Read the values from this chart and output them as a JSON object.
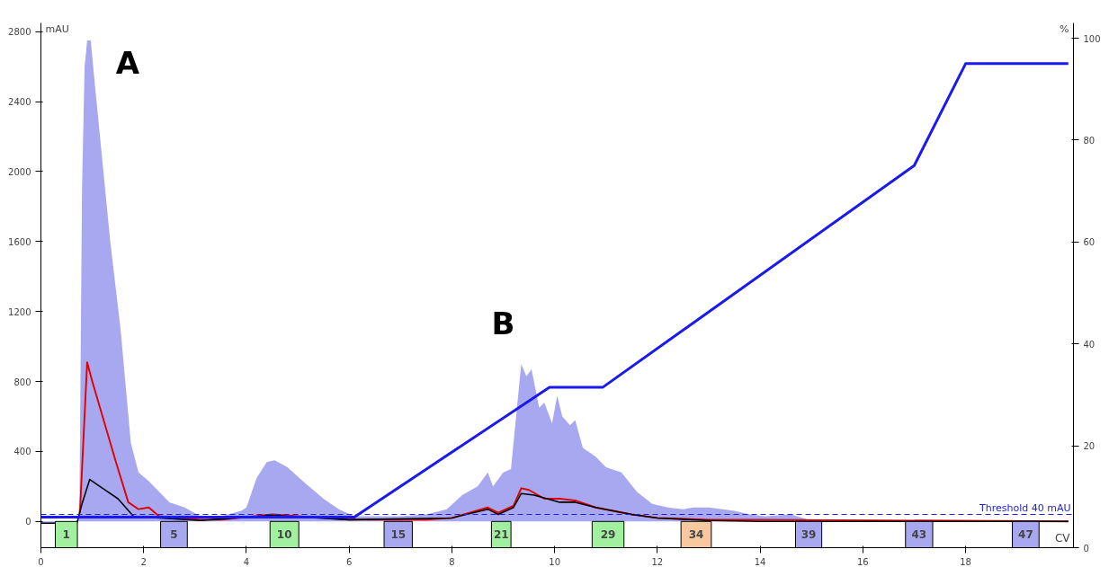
{
  "chart_data": {
    "type": "line",
    "xlabel": "CV",
    "ylabel": "mAU",
    "y2label": "%",
    "xlim": [
      0,
      20.1
    ],
    "xticks": [
      0,
      2,
      4,
      6,
      8,
      10,
      12,
      14,
      16,
      18
    ],
    "ylim": [
      -150,
      2850
    ],
    "yticks": [
      0,
      400,
      800,
      1200,
      1600,
      2000,
      2400,
      2800
    ],
    "y2lim": [
      0,
      103
    ],
    "y2ticks": [
      0,
      20,
      40,
      60,
      80,
      100
    ],
    "grid": false,
    "series": [
      {
        "type": "area",
        "color": "#a8a8f0",
        "x": [
          0,
          0.7,
          0.75,
          0.8,
          0.85,
          0.9,
          0.97,
          1.05,
          1.2,
          1.35,
          1.55,
          1.75,
          1.9,
          2.1,
          2.3,
          2.5,
          2.8,
          3.1,
          3.5,
          3.9,
          4.0,
          4.2,
          4.4,
          4.55,
          4.8,
          5.1,
          5.5,
          5.8,
          6.1,
          7.0,
          7.5,
          7.9,
          8.2,
          8.5,
          8.7,
          8.8,
          9.0,
          9.15,
          9.3,
          9.35,
          9.45,
          9.55,
          9.7,
          9.8,
          9.95,
          10.05,
          10.15,
          10.3,
          10.4,
          10.55,
          10.8,
          11.0,
          11.3,
          11.6,
          11.9,
          12.2,
          12.5,
          12.7,
          13.0,
          13.5,
          13.8,
          14.1,
          14.6,
          15.0,
          16.0,
          20.0
        ],
        "values": [
          -10,
          -10,
          100,
          1900,
          2600,
          2750,
          2750,
          2500,
          2050,
          1600,
          1100,
          450,
          280,
          230,
          170,
          110,
          80,
          30,
          30,
          60,
          80,
          250,
          340,
          350,
          310,
          230,
          130,
          70,
          30,
          30,
          40,
          70,
          150,
          200,
          280,
          200,
          280,
          300,
          750,
          900,
          830,
          870,
          650,
          680,
          560,
          720,
          600,
          550,
          580,
          420,
          370,
          310,
          280,
          170,
          100,
          80,
          70,
          80,
          80,
          60,
          40,
          30,
          40,
          5,
          0,
          0
        ]
      },
      {
        "color": "#e00000",
        "x": [
          0.76,
          0.8,
          0.9,
          1.0,
          1.2,
          1.45,
          1.7,
          1.9,
          2.1,
          2.3,
          3.1,
          3.5,
          4.5,
          5.5,
          6.0,
          7.5,
          8.0,
          8.7,
          8.9,
          9.2,
          9.35,
          9.5,
          9.8,
          10.1,
          10.4,
          10.8,
          11.5,
          12.0,
          13.0,
          14.0,
          20.0
        ],
        "values": [
          50,
          300,
          910,
          800,
          600,
          350,
          110,
          70,
          80,
          30,
          10,
          10,
          40,
          20,
          10,
          10,
          20,
          80,
          50,
          90,
          190,
          180,
          130,
          130,
          120,
          80,
          40,
          20,
          10,
          10,
          0
        ]
      },
      {
        "color": "#000000",
        "x": [
          0,
          0.7,
          0.8,
          0.95,
          1.2,
          1.5,
          1.8,
          2.3,
          3.1,
          4.5,
          6.0,
          8.0,
          8.7,
          8.9,
          9.2,
          9.35,
          9.6,
          10.1,
          10.4,
          10.8,
          11.5,
          12.0,
          13.0,
          14.0,
          20.0
        ],
        "values": [
          -10,
          -10,
          100,
          240,
          190,
          130,
          30,
          20,
          5,
          35,
          10,
          20,
          70,
          40,
          80,
          160,
          150,
          110,
          110,
          80,
          40,
          20,
          5,
          0,
          0
        ]
      },
      {
        "color": "#1a1aee",
        "axis": "y2",
        "x": [
          0,
          6.1,
          9.9,
          10.94,
          17.0,
          18.0,
          20.0
        ],
        "values": [
          6,
          6,
          31.5,
          31.5,
          75,
          95,
          95
        ]
      }
    ],
    "ref_lines": [
      {
        "axis": "y",
        "value": 40,
        "label": "Threshold 40 mAU",
        "color": "#2020e0",
        "line_style": "dashed"
      }
    ],
    "bands": [
      {
        "axis": "x",
        "from": 0.28,
        "to": 0.71,
        "label": "1",
        "color": "#a0f0a0"
      },
      {
        "axis": "x",
        "from": 2.33,
        "to": 2.85,
        "label": "5",
        "color": "#a8a8f0"
      },
      {
        "axis": "x",
        "from": 4.46,
        "to": 5.02,
        "label": "10",
        "color": "#a0f0a0"
      },
      {
        "axis": "x",
        "from": 6.68,
        "to": 7.23,
        "label": "15",
        "color": "#a8a8f0"
      },
      {
        "axis": "x",
        "from": 8.77,
        "to": 9.15,
        "label": "21",
        "color": "#a0f0a0"
      },
      {
        "axis": "x",
        "from": 10.73,
        "to": 11.35,
        "label": "29",
        "color": "#a0f0a0"
      },
      {
        "axis": "x",
        "from": 12.46,
        "to": 13.05,
        "label": "34",
        "color": "#f8c8a0"
      },
      {
        "axis": "x",
        "from": 14.69,
        "to": 15.2,
        "label": "39",
        "color": "#a8a8f0"
      },
      {
        "axis": "x",
        "from": 16.83,
        "to": 17.36,
        "label": "43",
        "color": "#a8a8f0"
      },
      {
        "axis": "x",
        "from": 18.91,
        "to": 19.43,
        "label": "47",
        "color": "#a8a8f0"
      }
    ],
    "annotations": [
      {
        "text": "A",
        "x": 0.9,
        "y": 2750
      },
      {
        "text": "B",
        "x": 9.35,
        "y": 900
      }
    ]
  }
}
